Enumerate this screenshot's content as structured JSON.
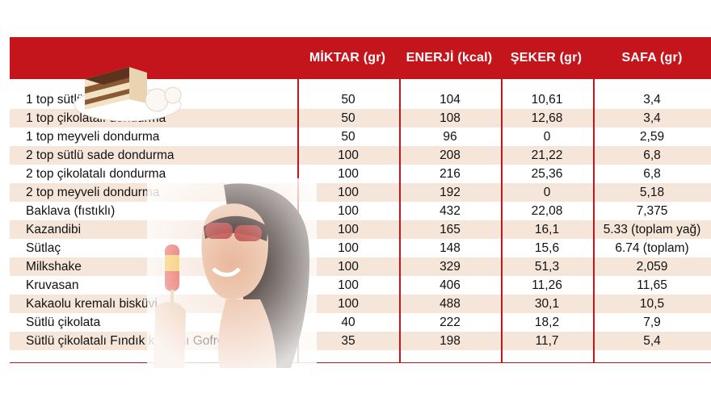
{
  "table": {
    "headers": [
      "",
      "MİKTAR (gr)",
      "ENERJİ (kcal)",
      "ŞEKER (gr)",
      "SAFA (gr)"
    ],
    "rows": [
      [
        "1 top sütlü sade dondurma",
        "50",
        "104",
        "10,61",
        "3,4"
      ],
      [
        "1 top çikolatalı dondurma",
        "50",
        "108",
        "12,68",
        "3,4"
      ],
      [
        "1 top meyveli dondurma",
        "50",
        "96",
        "0",
        "2,59"
      ],
      [
        "2 top sütlü sade dondurma",
        "100",
        "208",
        "21,22",
        "6,8"
      ],
      [
        "2 top çikolatalı dondurma",
        "100",
        "216",
        "25,36",
        "6,8"
      ],
      [
        "2 top meyveli dondurma",
        "100",
        "192",
        "0",
        "5,18"
      ],
      [
        "Baklava (fıstıklı)",
        "100",
        "432",
        "22,08",
        "7,375"
      ],
      [
        "Kazandibi",
        "100",
        "165",
        "16,1",
        "5.33 (toplam yağ)"
      ],
      [
        "Sütlaç",
        "100",
        "148",
        "15,6",
        "6.74 (toplam)"
      ],
      [
        "Milkshake",
        "100",
        "329",
        "51,3",
        "2,059"
      ],
      [
        "Kruvasan",
        "100",
        "406",
        "11,26",
        "11,65"
      ],
      [
        "Kakaolu kremalı bisküvi",
        "100",
        "488",
        "30,1",
        "10,5"
      ],
      [
        "Sütlü çikolata",
        "40",
        "222",
        "18,2",
        "7,9"
      ],
      [
        "Sütlü çikolatalı Fındık kremalı Gofret",
        "35",
        "198",
        "11,7",
        "5,4"
      ]
    ]
  },
  "colors": {
    "header_bg": "#c4151c",
    "header_text": "#ffffff",
    "row_alt": "#f6e6da",
    "grid": "#c4151c"
  },
  "images": [
    "tiramisu-cake-illustration",
    "woman-with-popsicle-photo"
  ]
}
